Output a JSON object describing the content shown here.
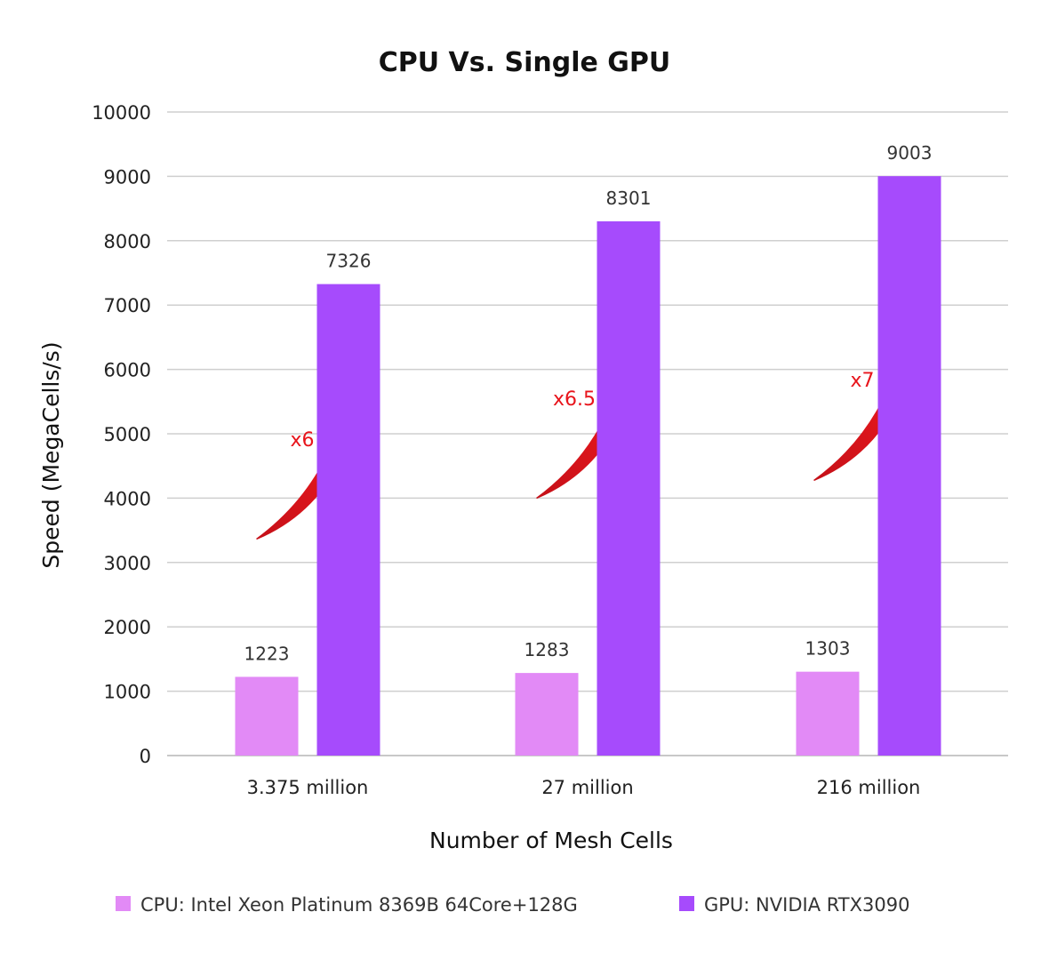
{
  "chart_data": {
    "type": "bar",
    "title": "CPU Vs. Single GPU",
    "xlabel": "Number of Mesh Cells",
    "ylabel": "Speed (MegaCells/s)",
    "ylim": [
      0,
      10000
    ],
    "yticks": [
      "0",
      "1000",
      "2000",
      "3000",
      "4000",
      "5000",
      "6000",
      "7000",
      "8000",
      "9000",
      "10000"
    ],
    "categories": [
      "3.375 million",
      "27 million",
      "216 million"
    ],
    "series": [
      {
        "name": "CPU: Intel Xeon Platinum 8369B 64Core+128G",
        "color": "#e28af6",
        "values": [
          1223,
          1283,
          1303
        ]
      },
      {
        "name": "GPU: NVIDIA RTX3090",
        "color": "#a64bfc",
        "values": [
          7326,
          8301,
          9003
        ]
      }
    ],
    "data_labels": [
      [
        "1223",
        "1283",
        "1303"
      ],
      [
        "7326",
        "8301",
        "9003"
      ]
    ],
    "annotations": [
      {
        "category": "3.375 million",
        "text": "x6",
        "color": "#e8141b"
      },
      {
        "category": "27 million",
        "text": "x6.5",
        "color": "#e8141b"
      },
      {
        "category": "216 million",
        "text": "x7",
        "color": "#e8141b"
      }
    ],
    "grid": true,
    "legend_position": "bottom"
  }
}
